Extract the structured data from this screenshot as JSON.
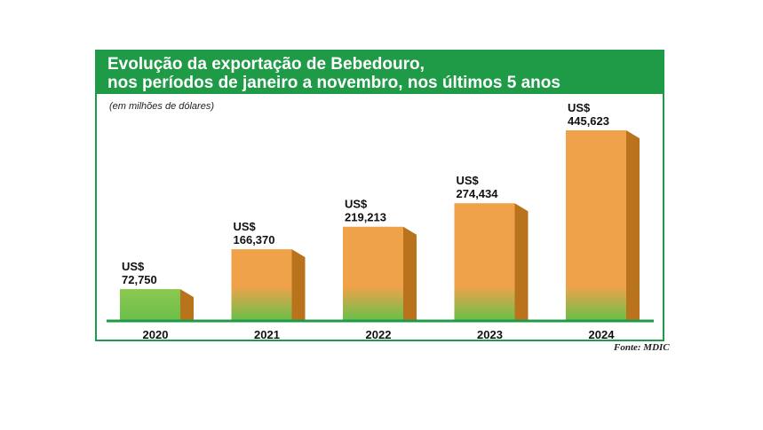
{
  "title": {
    "line1": "Evolução da exportação de Bebedouro,",
    "line2": "nos períodos de janeiro a novembro, nos últimos 5 anos"
  },
  "units_note": "(em milhões de dólares)",
  "source": "Fonte: MDIC",
  "colors": {
    "header": "#1f9a47",
    "bar_front": "#f0a24a",
    "bar_side": "#b8731c",
    "bar_top": "#d98c35",
    "gradient_green": "#6bbf4a",
    "baseline": "#1f9a47"
  },
  "chart_data": {
    "type": "bar",
    "title": "Evolução da exportação de Bebedouro, nos períodos de janeiro a novembro, nos últimos 5 anos",
    "ylabel": "(em milhões de dólares)",
    "categories": [
      "2020",
      "2021",
      "2022",
      "2023",
      "2024"
    ],
    "values": [
      72.75,
      166.37,
      219.213,
      274.434,
      445.623
    ],
    "value_labels": [
      [
        "US$",
        "72,750"
      ],
      [
        "US$",
        "166,370"
      ],
      [
        "US$",
        "219,213"
      ],
      [
        "US$",
        "274,434"
      ],
      [
        "US$",
        "445,623"
      ]
    ],
    "ylim": [
      0,
      445.623
    ],
    "grid": false,
    "legend": "none",
    "style": "3d"
  }
}
